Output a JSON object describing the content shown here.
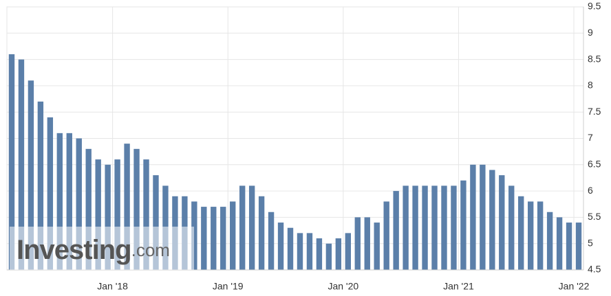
{
  "chart_data": {
    "type": "bar",
    "categories": [
      null,
      null,
      null,
      null,
      null,
      null,
      null,
      null,
      null,
      null,
      null,
      "Jan '18",
      null,
      null,
      null,
      null,
      null,
      null,
      null,
      null,
      null,
      null,
      null,
      "Jan '19",
      null,
      null,
      null,
      null,
      null,
      null,
      null,
      null,
      null,
      null,
      null,
      "Jan '20",
      null,
      null,
      null,
      null,
      null,
      null,
      null,
      null,
      null,
      null,
      null,
      "Jan '21",
      null,
      null,
      null,
      null,
      null,
      null,
      null,
      null,
      null,
      null,
      null,
      "Jan '22"
    ],
    "values": [
      8.6,
      8.5,
      8.1,
      7.7,
      7.4,
      7.1,
      7.1,
      7.0,
      6.8,
      6.6,
      6.5,
      6.6,
      6.9,
      6.8,
      6.6,
      6.3,
      6.1,
      5.9,
      5.9,
      5.8,
      5.7,
      5.7,
      5.7,
      5.8,
      6.1,
      6.1,
      5.9,
      5.6,
      5.4,
      5.3,
      5.2,
      5.2,
      5.1,
      5.0,
      5.1,
      5.2,
      5.5,
      5.5,
      5.4,
      5.8,
      6.0,
      6.1,
      6.1,
      6.1,
      6.1,
      6.1,
      6.1,
      6.2,
      6.5,
      6.5,
      6.4,
      6.3,
      6.1,
      5.9,
      5.8,
      5.8,
      5.6,
      5.5,
      5.4,
      5.4
    ],
    "color": "#5b7fa9",
    "ylim": [
      4.5,
      9.5
    ],
    "yticks": [
      4.5,
      5,
      5.5,
      6,
      6.5,
      7,
      7.5,
      8,
      8.5,
      9,
      9.5
    ],
    "grid": true,
    "watermark": [
      "Investing",
      ".com"
    ]
  }
}
